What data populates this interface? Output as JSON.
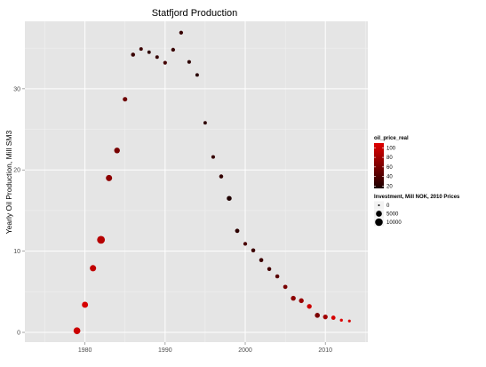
{
  "chart_data": {
    "type": "scatter",
    "title": "Statfjord Production",
    "xlabel": "",
    "ylabel": "Yearly Oil Production, Mill SM3",
    "xlim": [
      1972.5,
      2015.3
    ],
    "ylim": [
      -1.2,
      38.3
    ],
    "x_ticks": [
      1980,
      1990,
      2000,
      2010
    ],
    "x_tick_labels": [
      "1980",
      "1990",
      "2000",
      "2010"
    ],
    "y_ticks": [
      0,
      10,
      20,
      30
    ],
    "y_tick_labels": [
      "0",
      "10",
      "20",
      "30"
    ],
    "grid": true,
    "legend_position": "right",
    "color_legend": {
      "title": "oil_price_real",
      "ticks": [
        20,
        40,
        60,
        80,
        100
      ],
      "tick_labels": [
        "20",
        "40",
        "60",
        "80",
        "100"
      ],
      "range": [
        15,
        110
      ],
      "low_color": "#1a0000",
      "high_color": "#e00000"
    },
    "size_legend": {
      "title": "Investment, Mill NOK, 2010 Prices",
      "values": [
        0,
        5000,
        10000
      ],
      "labels": [
        "0",
        "5000",
        "10000"
      ]
    },
    "points": [
      {
        "year": 1979,
        "production": 0.2,
        "price": 100,
        "investment": 7500
      },
      {
        "year": 1980,
        "production": 3.4,
        "price": 105,
        "investment": 5500
      },
      {
        "year": 1981,
        "production": 7.9,
        "price": 95,
        "investment": 6000
      },
      {
        "year": 1982,
        "production": 11.4,
        "price": 90,
        "investment": 10500
      },
      {
        "year": 1983,
        "production": 19.0,
        "price": 70,
        "investment": 5800
      },
      {
        "year": 1984,
        "production": 22.4,
        "price": 60,
        "investment": 4500
      },
      {
        "year": 1985,
        "production": 28.7,
        "price": 55,
        "investment": 2200
      },
      {
        "year": 1986,
        "production": 34.2,
        "price": 30,
        "investment": 1500
      },
      {
        "year": 1987,
        "production": 34.9,
        "price": 32,
        "investment": 900
      },
      {
        "year": 1988,
        "production": 34.5,
        "price": 25,
        "investment": 800
      },
      {
        "year": 1989,
        "production": 33.9,
        "price": 28,
        "investment": 900
      },
      {
        "year": 1990,
        "production": 33.2,
        "price": 35,
        "investment": 1100
      },
      {
        "year": 1991,
        "production": 34.8,
        "price": 30,
        "investment": 1300
      },
      {
        "year": 1992,
        "production": 36.9,
        "price": 28,
        "investment": 1200
      },
      {
        "year": 1993,
        "production": 33.3,
        "price": 24,
        "investment": 1000
      },
      {
        "year": 1994,
        "production": 31.7,
        "price": 22,
        "investment": 900
      },
      {
        "year": 1995,
        "production": 25.8,
        "price": 24,
        "investment": 800
      },
      {
        "year": 1996,
        "production": 21.6,
        "price": 28,
        "investment": 1000
      },
      {
        "year": 1997,
        "production": 19.2,
        "price": 27,
        "investment": 1500
      },
      {
        "year": 1998,
        "production": 16.5,
        "price": 18,
        "investment": 2800
      },
      {
        "year": 1999,
        "production": 12.5,
        "price": 24,
        "investment": 1900
      },
      {
        "year": 2000,
        "production": 10.9,
        "price": 37,
        "investment": 1200
      },
      {
        "year": 2001,
        "production": 10.1,
        "price": 32,
        "investment": 1500
      },
      {
        "year": 2002,
        "production": 8.9,
        "price": 32,
        "investment": 1600
      },
      {
        "year": 2003,
        "production": 7.8,
        "price": 35,
        "investment": 1400
      },
      {
        "year": 2004,
        "production": 6.9,
        "price": 45,
        "investment": 1500
      },
      {
        "year": 2005,
        "production": 5.6,
        "price": 60,
        "investment": 1800
      },
      {
        "year": 2006,
        "production": 4.2,
        "price": 70,
        "investment": 2800
      },
      {
        "year": 2007,
        "production": 3.9,
        "price": 75,
        "investment": 2700
      },
      {
        "year": 2008,
        "production": 3.2,
        "price": 100,
        "investment": 2600
      },
      {
        "year": 2009,
        "production": 2.1,
        "price": 62,
        "investment": 3000
      },
      {
        "year": 2010,
        "production": 1.9,
        "price": 80,
        "investment": 2500
      },
      {
        "year": 2011,
        "production": 1.8,
        "price": 105,
        "investment": 1800
      },
      {
        "year": 2012,
        "production": 1.5,
        "price": 108,
        "investment": 400
      },
      {
        "year": 2013,
        "production": 1.4,
        "price": 105,
        "investment": 300
      }
    ]
  }
}
